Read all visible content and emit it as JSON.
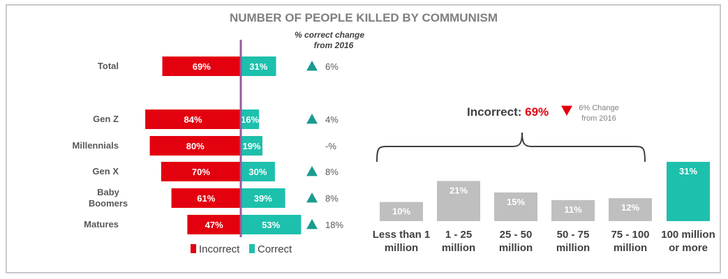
{
  "chart_data": [
    {
      "type": "bar",
      "orientation": "horizontal-diverging",
      "title": "NUMBER OF PEOPLE KILLED BY COMMUNISM",
      "categories": [
        "Total",
        "Gen Z",
        "Millennials",
        "Gen X",
        "Baby Boomers",
        "Matures"
      ],
      "series": [
        {
          "name": "Incorrect",
          "color": "#e3000f",
          "values": [
            69,
            84,
            80,
            70,
            61,
            47
          ],
          "labels": [
            "69%",
            "84%",
            "80%",
            "70%",
            "61%",
            "47%"
          ]
        },
        {
          "name": "Correct",
          "color": "#1dc0ac",
          "values": [
            31,
            16,
            19,
            30,
            39,
            53
          ],
          "labels": [
            "31%",
            "16%",
            "19%",
            "30%",
            "39%",
            "53%"
          ]
        }
      ],
      "change_header": [
        "% correct change",
        "from 2016"
      ],
      "change": [
        {
          "text": "6%",
          "direction": "up"
        },
        {
          "text": "4%",
          "direction": "up"
        },
        {
          "text": "-%",
          "direction": "none"
        },
        {
          "text": "8%",
          "direction": "up"
        },
        {
          "text": "8%",
          "direction": "up"
        },
        {
          "text": "18%",
          "direction": "up"
        }
      ],
      "legend": "bottom",
      "axis_line_color": "#9a5a9b",
      "arrow_color": "#1a9b8f"
    },
    {
      "type": "bar",
      "categories": [
        "Less than 1 million",
        "1 - 25 million",
        "25 - 50 million",
        "50 - 75 million",
        "75 - 100 million",
        "100 million or more"
      ],
      "category_lines": [
        [
          "Less than 1",
          "million"
        ],
        [
          "1 - 25",
          "million"
        ],
        [
          "25 - 50",
          "million"
        ],
        [
          "50 - 75",
          "million"
        ],
        [
          "75 - 100",
          "million"
        ],
        [
          "100 million",
          "or more"
        ]
      ],
      "values": [
        10,
        21,
        15,
        11,
        12,
        31
      ],
      "labels": [
        "10%",
        "21%",
        "15%",
        "11%",
        "12%",
        "31%"
      ],
      "colors": [
        "#bfbfbf",
        "#bfbfbf",
        "#bfbfbf",
        "#bfbfbf",
        "#bfbfbf",
        "#1dc0ac"
      ],
      "callout": {
        "label": "Incorrect: ",
        "value": "69%",
        "change_lines": [
          "6% Change",
          "from 2016"
        ],
        "change_direction": "down"
      }
    }
  ]
}
